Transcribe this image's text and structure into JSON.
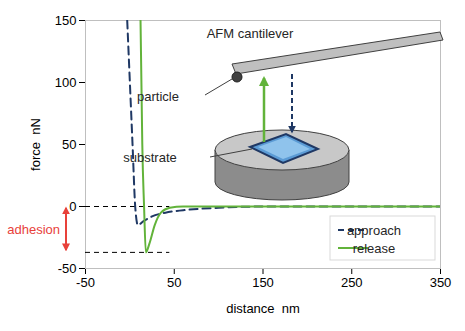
{
  "chart_data": {
    "type": "line",
    "x_label": "distance  nm",
    "y_label": "force  nN",
    "xlim": [
      -50,
      350
    ],
    "xticks": [
      -50,
      50,
      150,
      250,
      350
    ],
    "ylim": [
      -50,
      150
    ],
    "yticks": [
      -50,
      0,
      50,
      100,
      150
    ],
    "grid": false,
    "legend": "lower right",
    "series": [
      {
        "name": "approach",
        "color": "#1f3864",
        "line_style": "dashed",
        "x": [
          -3,
          0,
          3,
          6,
          9,
          15,
          25,
          40,
          60,
          100,
          150,
          250,
          350
        ],
        "values": [
          150,
          100,
          50,
          0,
          -15,
          -12,
          -8,
          -5,
          -3,
          -1,
          0,
          0,
          0
        ]
      },
      {
        "name": "release",
        "color": "#62b33a",
        "line_style": "solid",
        "x": [
          12,
          13,
          14,
          16,
          18,
          22,
          28,
          35,
          45,
          60,
          150,
          250,
          350
        ],
        "values": [
          150,
          100,
          50,
          0,
          -37,
          -30,
          -15,
          -5,
          -1,
          0,
          0,
          0,
          0
        ]
      }
    ],
    "adhesion": {
      "label": "adhesion",
      "color": "#e8413a",
      "y": [
        0,
        -37
      ],
      "x": [
        -50,
        45
      ]
    },
    "annotations": {
      "cantilever": "AFM cantilever",
      "particle": "particle",
      "substrate": "substrate"
    }
  }
}
